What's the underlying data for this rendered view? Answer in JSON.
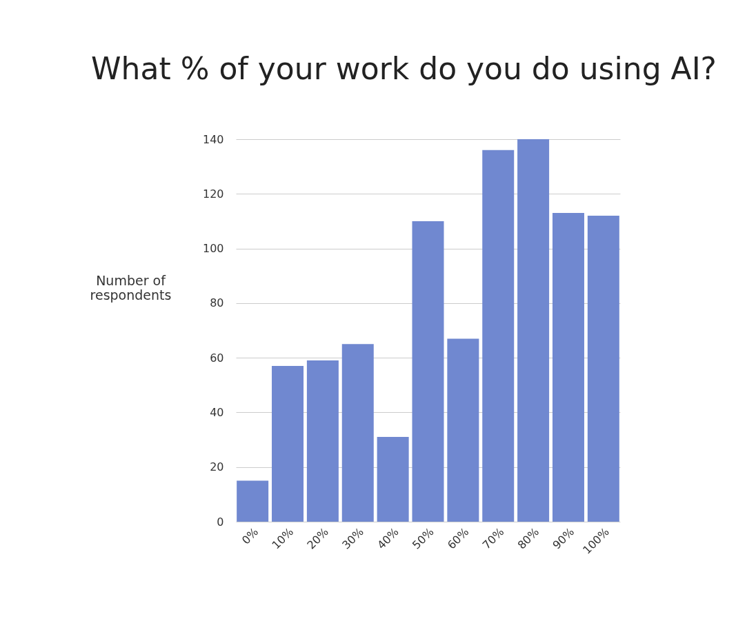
{
  "chart_data": {
    "type": "bar",
    "title": "What % of your work do you do using AI?",
    "ylabel": "Number of respondents",
    "categories": [
      "0%",
      "10%",
      "20%",
      "30%",
      "40%",
      "50%",
      "60%",
      "70%",
      "80%",
      "90%",
      "100%"
    ],
    "values": [
      15,
      57,
      59,
      65,
      31,
      110,
      67,
      136,
      140,
      113,
      112
    ],
    "color": "#7088d0",
    "ylim": [
      0,
      140
    ],
    "yticks": [
      0,
      20,
      40,
      60,
      80,
      100,
      120,
      140
    ],
    "grid": "y"
  }
}
